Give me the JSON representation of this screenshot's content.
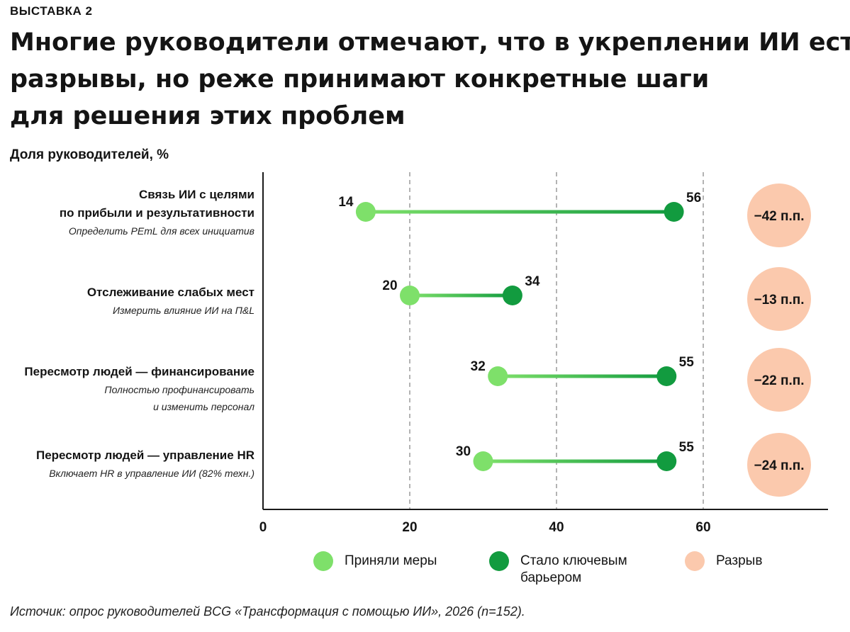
{
  "exhibit_label": "ВЫСТАВКА 2",
  "title_lines": [
    "Многие руководители отмечают, что в укреплении ИИ есть",
    "разрывы, но реже принимают конкретные шаги",
    "для решения этих проблем"
  ],
  "source": "Источик: опрос руководителей BCG «Трансформация с помощью ИИ», 2026 (n=152).",
  "colors": {
    "took_action": "#7ee06a",
    "key_barrier": "#129b3f",
    "gap": "#fbc9ad",
    "grid": "#9a9a9a",
    "axis": "#1a1a1a"
  },
  "chart_data": {
    "type": "dumbbell",
    "ylabel": "Доля руководителей, %",
    "xlim": [
      0,
      77
    ],
    "xticks": [
      0,
      20,
      40,
      60
    ],
    "grid_lines": [
      20,
      40,
      60
    ],
    "grid": true,
    "legend_position": "bottom",
    "legend": [
      "Приняли меры",
      "Стало ключевым\nбарьером",
      "Разрыв"
    ],
    "series": [
      {
        "name": "Приняли меры",
        "values": [
          14,
          20,
          32,
          30
        ]
      },
      {
        "name": "Стало ключевым барьером",
        "values": [
          56,
          34,
          55,
          55
        ]
      }
    ],
    "rows": [
      {
        "label": "Связь ИИ с целями\nпо прибыли и результативности",
        "sublabel": "Определить PEтL для всех инициатив",
        "took_action": 14,
        "key_barrier": 56,
        "gap_label": "−42 п.п."
      },
      {
        "label": "Отслеживание слабых мест",
        "sublabel": "Измерить влияние ИИ на П&L",
        "took_action": 20,
        "key_barrier": 34,
        "gap_label": "−13 п.п."
      },
      {
        "label": "Пересмотр людей — финансирование",
        "sublabel": "Полностью профинансировать\nи изменить персонал",
        "took_action": 32,
        "key_barrier": 55,
        "gap_label": "−22 п.п."
      },
      {
        "label": "Пересмотр людей — управление HR",
        "sublabel": "Включает HR в управление ИИ (82% техн.)",
        "took_action": 30,
        "key_barrier": 55,
        "gap_label": "−24 п.п."
      }
    ]
  }
}
